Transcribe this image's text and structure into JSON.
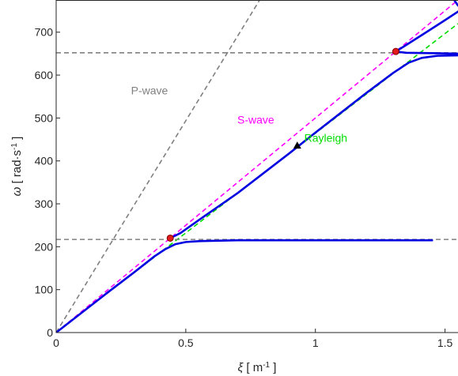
{
  "chart_data": {
    "type": "line",
    "xlabel_parts": {
      "symbol": "ξ",
      "pre": " [ m",
      "sup": "-1",
      "post": " ]"
    },
    "ylabel_parts": {
      "symbol": "ω",
      "pre": " [ rad·s",
      "sup": "-1",
      "post": " ]"
    },
    "xlim": [
      0,
      1.55
    ],
    "ylim": [
      0,
      775
    ],
    "xticks": [
      {
        "v": 0,
        "label": "0"
      },
      {
        "v": 0.5,
        "label": "0.5"
      },
      {
        "v": 1,
        "label": "1"
      },
      {
        "v": 1.5,
        "label": "1.5"
      }
    ],
    "yticks": [
      {
        "v": 0,
        "label": "0"
      },
      {
        "v": 100,
        "label": "100"
      },
      {
        "v": 200,
        "label": "200"
      },
      {
        "v": 300,
        "label": "300"
      },
      {
        "v": 400,
        "label": "400"
      },
      {
        "v": 500,
        "label": "500"
      },
      {
        "v": 600,
        "label": "600"
      },
      {
        "v": 700,
        "label": "700"
      }
    ],
    "colors": {
      "pwave": "#808080",
      "swave": "#ff00ff",
      "rayleigh": "#00dd00",
      "hline": "#808080",
      "blue": "#0000e0",
      "marker_red": "#e31a1c",
      "marker_black": "#000000"
    },
    "series": [
      {
        "name": "P-wave",
        "style": "dashed",
        "color": "#808080",
        "points": [
          [
            0,
            0
          ],
          [
            0.785,
            775
          ]
        ]
      },
      {
        "name": "S-wave",
        "style": "dashed",
        "color": "#ff00ff",
        "points": [
          [
            0,
            0
          ],
          [
            1.55,
            775
          ]
        ]
      },
      {
        "name": "Rayleigh",
        "style": "dashed",
        "color": "#00dd00",
        "points": [
          [
            0,
            0
          ],
          [
            1.55,
            720
          ]
        ]
      },
      {
        "style": "dashed",
        "color": "#808080",
        "points": [
          [
            0,
            217
          ],
          [
            1.55,
            217
          ]
        ]
      },
      {
        "style": "dashed",
        "color": "#808080",
        "points": [
          [
            0,
            652
          ],
          [
            1.55,
            652
          ]
        ]
      },
      {
        "style": "solid",
        "color": "#0000e0",
        "points": [
          [
            0,
            0
          ],
          [
            0.1,
            47
          ],
          [
            0.2,
            94
          ],
          [
            0.3,
            140
          ],
          [
            0.38,
            178
          ],
          [
            0.42,
            194
          ],
          [
            0.46,
            206
          ],
          [
            0.5,
            211
          ],
          [
            0.55,
            213
          ],
          [
            0.7,
            215
          ],
          [
            1.0,
            215
          ],
          [
            1.45,
            215
          ]
        ]
      },
      {
        "style": "solid",
        "color": "#0000e0",
        "points": [
          [
            0.44,
            220
          ],
          [
            0.48,
            232
          ],
          [
            0.55,
            262
          ],
          [
            0.7,
            325
          ],
          [
            0.9,
            418
          ],
          [
            1.0,
            466
          ],
          [
            1.1,
            513
          ],
          [
            1.2,
            560
          ],
          [
            1.3,
            605
          ],
          [
            1.36,
            629
          ],
          [
            1.41,
            640
          ],
          [
            1.47,
            645
          ],
          [
            1.55,
            646
          ]
        ]
      },
      {
        "style": "solid",
        "color": "#0000e0",
        "points": [
          [
            1.31,
            655
          ],
          [
            1.35,
            670
          ],
          [
            1.42,
            697
          ],
          [
            1.5,
            728
          ],
          [
            1.55,
            748
          ]
        ]
      },
      {
        "style": "solid",
        "color": "#0000e0",
        "points": [
          [
            1.31,
            655
          ],
          [
            1.35,
            652
          ],
          [
            1.45,
            651
          ],
          [
            1.55,
            650
          ]
        ]
      },
      {
        "style": "solid",
        "color": "#0000e0",
        "points": [
          [
            1.535,
            775
          ],
          [
            1.55,
            762
          ]
        ]
      }
    ],
    "markers": [
      {
        "shape": "circle",
        "color": "#e31a1c",
        "x": 0.44,
        "y": 220
      },
      {
        "shape": "circle",
        "color": "#e31a1c",
        "x": 1.31,
        "y": 655
      },
      {
        "shape": "triangle",
        "color": "#000000",
        "x": 0.93,
        "y": 436
      }
    ],
    "annotations": [
      {
        "text": "P-wave",
        "x": 0.36,
        "y": 555,
        "color": "#808080"
      },
      {
        "text": "S-wave",
        "x": 0.77,
        "y": 487,
        "color": "#ff00ff"
      },
      {
        "text": "Rayleigh",
        "x": 1.04,
        "y": 445,
        "color": "#00dd00"
      }
    ]
  }
}
